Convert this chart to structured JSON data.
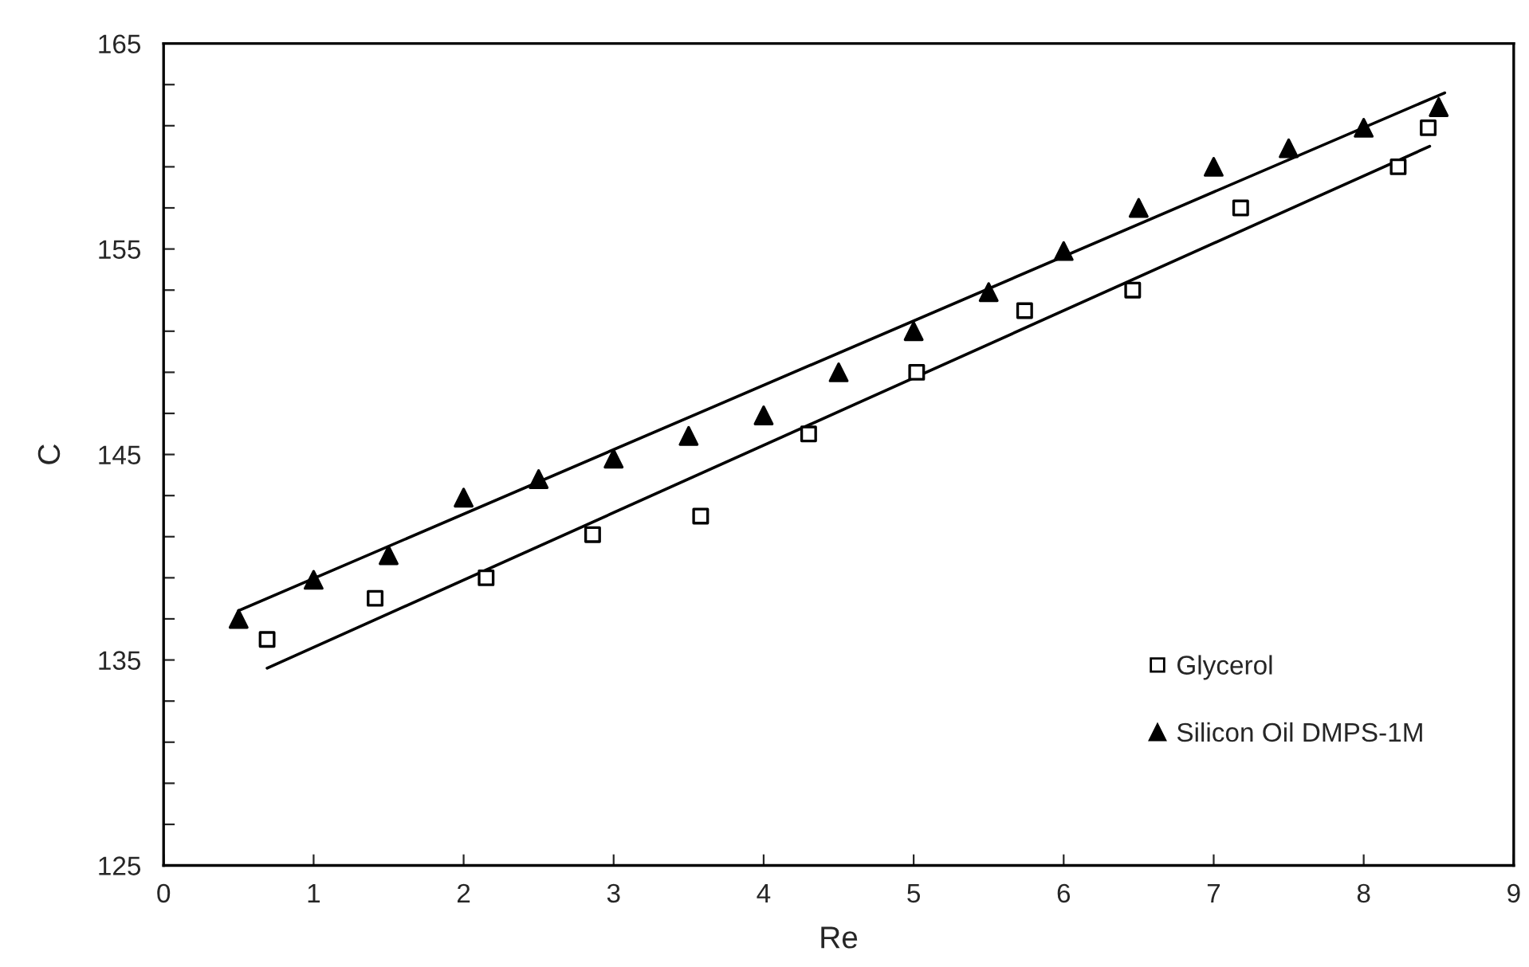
{
  "chart_data": {
    "type": "scatter",
    "xlabel": "Re",
    "ylabel": "C",
    "xlim": [
      0,
      9
    ],
    "xticks": [
      0,
      1,
      2,
      3,
      4,
      5,
      6,
      7,
      8,
      9
    ],
    "ylim": [
      125,
      165
    ],
    "yticks": [
      125,
      {
        "value": 127,
        "label": null
      },
      {
        "value": 129,
        "label": null
      },
      {
        "value": 131,
        "label": null
      },
      {
        "value": 133,
        "label": null
      },
      135,
      {
        "value": 137,
        "label": null
      },
      {
        "value": 139,
        "label": null
      },
      {
        "value": 141,
        "label": null
      },
      {
        "value": 143,
        "label": null
      },
      145,
      {
        "value": 147,
        "label": null
      },
      {
        "value": 149,
        "label": null
      },
      {
        "value": 151,
        "label": null
      },
      {
        "value": 153,
        "label": null
      },
      155,
      {
        "value": 157,
        "label": null
      },
      {
        "value": 159,
        "label": null
      },
      {
        "value": 161,
        "label": null
      },
      {
        "value": 163,
        "label": null
      },
      165
    ],
    "grid": false,
    "legend": "bottom right",
    "series": [
      {
        "name": "Glycerol",
        "marker": "square",
        "color": "#000000",
        "x": [
          0.69,
          1.41,
          2.15,
          2.86,
          3.58,
          4.3,
          5.02,
          5.74,
          6.46,
          7.18,
          8.23,
          8.43
        ],
        "values": [
          136.0,
          138.0,
          139.0,
          141.1,
          142.0,
          146.0,
          149.0,
          152.0,
          153.0,
          157.0,
          159.0,
          160.9
        ]
      },
      {
        "name": "Silicon Oil DMPS-1M",
        "marker": "triangle",
        "color": "#000000",
        "x": [
          0.5,
          1.0,
          1.5,
          2.0,
          2.5,
          3.0,
          3.5,
          4.0,
          4.5,
          5.0,
          5.5,
          6.0,
          6.5,
          7.0,
          7.5,
          8.0,
          8.5
        ],
        "values": [
          137.0,
          138.9,
          140.1,
          142.9,
          143.8,
          144.8,
          145.9,
          146.9,
          149.0,
          151.0,
          152.9,
          154.9,
          157.0,
          159.0,
          159.9,
          160.9,
          161.9
        ]
      },
      {
        "type": "line",
        "color": "#000000",
        "line_style": "solid",
        "x": [
          0.69,
          8.44
        ],
        "values": [
          134.6,
          160.0
        ]
      },
      {
        "type": "line",
        "color": "#000000",
        "line_style": "solid",
        "x": [
          0.5,
          8.54
        ],
        "values": [
          137.4,
          162.6
        ]
      }
    ]
  }
}
